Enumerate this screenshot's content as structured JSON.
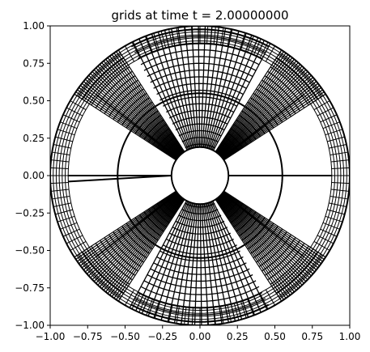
{
  "chart_data": {
    "type": "line",
    "title": "grids at time t =      2.00000000",
    "xlim": [
      -1.0,
      1.0
    ],
    "ylim": [
      -1.0,
      1.0
    ],
    "xticks": [
      -1.0,
      -0.75,
      -0.5,
      -0.25,
      0.0,
      0.25,
      0.5,
      0.75,
      1.0
    ],
    "xtick_labels": [
      "−1.00",
      "−0.75",
      "−0.50",
      "−0.25",
      "0.00",
      "0.25",
      "0.50",
      "0.75",
      "1.00"
    ],
    "yticks": [
      1.0,
      0.75,
      0.5,
      0.25,
      0.0,
      -0.25,
      -0.5,
      -0.75,
      -1.0
    ],
    "ytick_labels": [
      "1.00",
      "0.75",
      "0.50",
      "0.25",
      "0.00",
      "−0.25",
      "−0.50",
      "−0.75",
      "−1.00"
    ],
    "grid": false,
    "line_color": "#000000",
    "inner_radius": 0.19,
    "outer_radius": 1.0,
    "middle_circle_radius": 0.55,
    "annulus_inner_radius": 0.88,
    "dense_sector_centers_deg": [
      45,
      135,
      225,
      315
    ],
    "fine_sector_centers_deg": [
      90,
      270
    ]
  }
}
